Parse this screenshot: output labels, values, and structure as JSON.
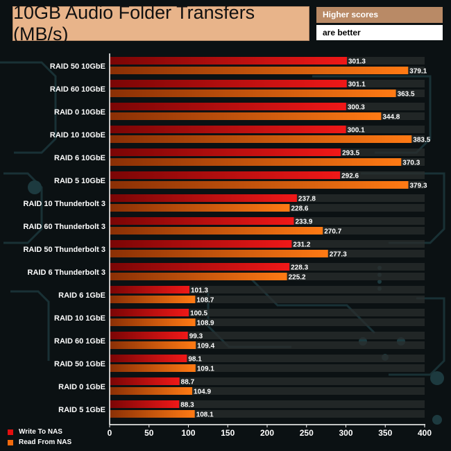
{
  "title": "10GB Audio Folder Transfers (MB/s)",
  "note": {
    "line1": "Higher scores",
    "line2": "are better"
  },
  "colors": {
    "write": "#e20f0f",
    "read": "#f26a0d",
    "background": "#0b1113",
    "title_bg": "#e8b48a",
    "note_bg": "#b98a66"
  },
  "chart_data": {
    "type": "bar",
    "orientation": "horizontal",
    "title": "10GB Audio Folder Transfers (MB/s)",
    "xlabel": "",
    "ylabel": "",
    "xlim": [
      0,
      400
    ],
    "xticks": [
      0,
      50,
      100,
      150,
      200,
      250,
      300,
      350,
      400
    ],
    "legend_position": "bottom-left",
    "categories": [
      "RAID 50 10GbE",
      "RAID 60 10GbE",
      "RAID 0 10GbE",
      "RAID 10 10GbE",
      "RAID 6 10GbE",
      "RAID 5 10GbE",
      "RAID 10 Thunderbolt 3",
      "RAID 60 Thunderbolt 3",
      "RAID 50 Thunderbolt 3",
      "RAID 6 Thunderbolt 3",
      "RAID 6 1GbE",
      "RAID 10 1GbE",
      "RAID 60 1GbE",
      "RAID 50 1GbE",
      "RAID 0 1GbE",
      "RAID 5 1GbE"
    ],
    "series": [
      {
        "name": "Write To NAS",
        "values": [
          301.3,
          301.1,
          300.3,
          300.1,
          293.5,
          292.6,
          237.8,
          233.9,
          231.2,
          228.3,
          101.3,
          100.5,
          99.3,
          98.1,
          88.7,
          88.3
        ]
      },
      {
        "name": "Read From NAS",
        "values": [
          379.1,
          363.5,
          344.8,
          383.5,
          370.3,
          379.3,
          228.6,
          270.7,
          277.3,
          225.2,
          108.7,
          108.9,
          109.4,
          109.1,
          104.9,
          108.1
        ]
      }
    ]
  }
}
